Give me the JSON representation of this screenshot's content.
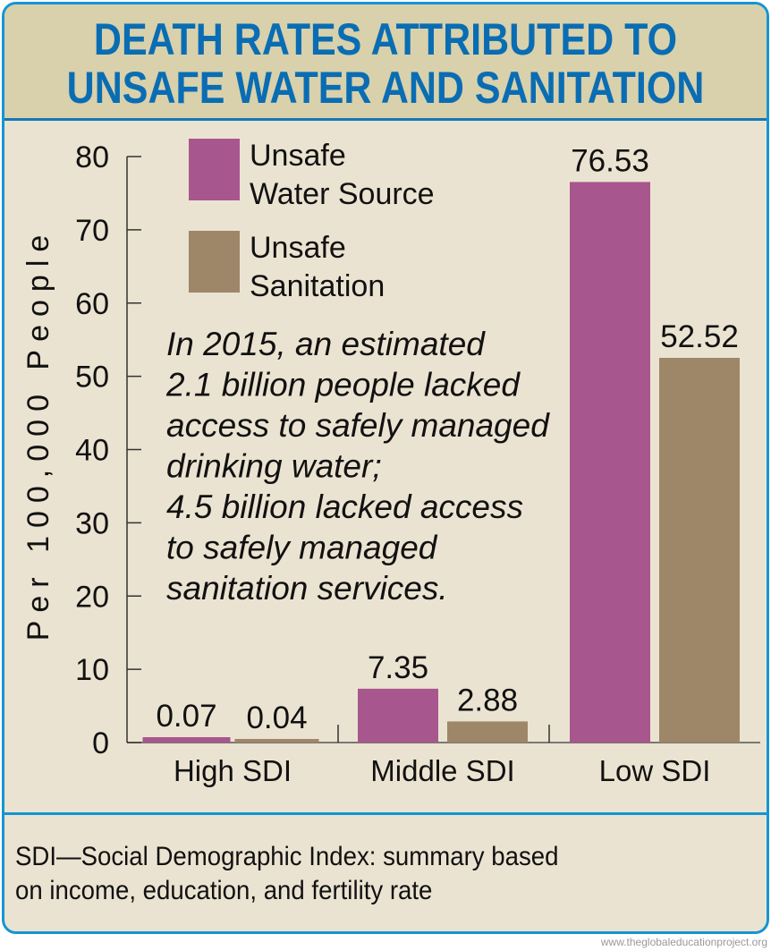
{
  "title": [
    "DEATH RATES ATTRIBUTED TO",
    "UNSAFE WATER AND SANITATION"
  ],
  "annotation": [
    "In 2015, an estimated",
    "2.1 billion people lacked",
    "access to safely managed",
    "drinking water;",
    "4.5 billion lacked access",
    "to safely managed",
    "sanitation services."
  ],
  "footer": [
    "SDI—Social Demographic Index: summary based",
    "on income, education, and fertility rate"
  ],
  "watermark": "www.theglobaleducationproject.org",
  "colors": {
    "title": "#0a6db3",
    "frame": "#1595d3",
    "water": "#a8568e",
    "sanitation": "#9e8669",
    "background": "#ebe3d1"
  },
  "chart_data": {
    "type": "bar",
    "title": "DEATH RATES ATTRIBUTED TO UNSAFE WATER AND SANITATION",
    "ylabel": "Per 100,000 People",
    "xlabel": "",
    "ylim": [
      0,
      80
    ],
    "yticks": [
      0,
      10,
      20,
      30,
      40,
      50,
      60,
      70,
      80
    ],
    "categories": [
      "High SDI",
      "Middle SDI",
      "Low SDI"
    ],
    "series": [
      {
        "name": "Unsafe Water Source",
        "legend": [
          "Unsafe",
          "Water Source"
        ],
        "color": "#a8568e",
        "values": [
          0.07,
          7.35,
          76.53
        ],
        "labels": [
          "0.07",
          "7.35",
          "76.53"
        ]
      },
      {
        "name": "Unsafe Sanitation",
        "legend": [
          "Unsafe",
          "Sanitation"
        ],
        "color": "#9e8669",
        "values": [
          0.04,
          2.88,
          52.52
        ],
        "labels": [
          "0.04",
          "2.88",
          "52.52"
        ]
      }
    ],
    "legend_position": "top-left",
    "grid": false
  }
}
